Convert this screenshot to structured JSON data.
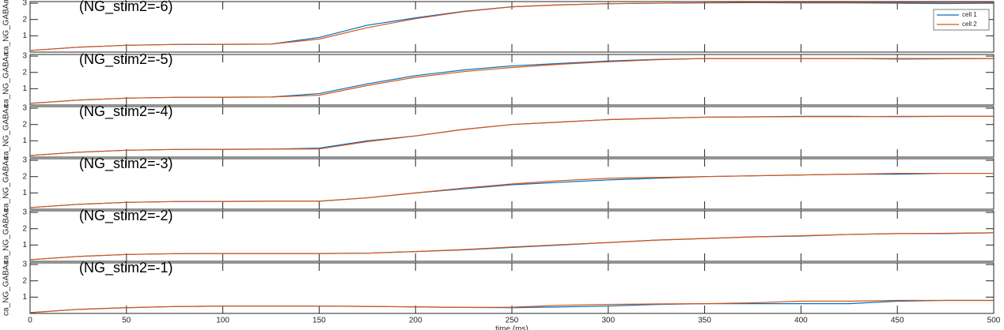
{
  "chart_data": [
    {
      "type": "line",
      "title": "(NG_stim2=-6)",
      "ylabel": "ca_NG_GABAa",
      "legend": "upper right",
      "x": [
        0,
        25,
        50,
        75,
        100,
        125,
        150,
        175,
        200,
        225,
        250,
        275,
        300,
        325,
        350,
        375,
        400,
        425,
        450,
        475,
        500
      ],
      "series": [
        {
          "name": "cell 1",
          "color": "#0072bd",
          "values": [
            0.1,
            0.3,
            0.42,
            0.47,
            0.48,
            0.49,
            0.9,
            1.65,
            2.1,
            2.5,
            2.78,
            2.9,
            2.97,
            3.0,
            3.02,
            3.03,
            3.02,
            3.02,
            3.0,
            2.98,
            3.0
          ]
        },
        {
          "name": "cell 2",
          "color": "#d95319",
          "values": [
            0.1,
            0.3,
            0.42,
            0.47,
            0.48,
            0.49,
            0.8,
            1.5,
            2.05,
            2.48,
            2.78,
            2.9,
            2.97,
            3.0,
            3.03,
            3.05,
            3.05,
            3.05,
            3.05,
            3.05,
            3.05
          ]
        }
      ],
      "xlim": [
        0,
        500
      ],
      "xticks": [
        0,
        50,
        100,
        150,
        200,
        250,
        300,
        350,
        400,
        450,
        500
      ],
      "ylim": [
        0,
        3.1
      ],
      "yticks": [
        1,
        2,
        3
      ]
    },
    {
      "type": "line",
      "title": "(NG_stim2=-5)",
      "ylabel": "ca_NG_GABAa",
      "x": [
        0,
        25,
        50,
        75,
        100,
        125,
        150,
        175,
        200,
        225,
        250,
        275,
        300,
        325,
        350,
        375,
        400,
        425,
        450,
        475,
        500
      ],
      "series": [
        {
          "name": "cell 1",
          "color": "#0072bd",
          "values": [
            0.1,
            0.3,
            0.42,
            0.47,
            0.48,
            0.49,
            0.7,
            1.3,
            1.8,
            2.15,
            2.4,
            2.55,
            2.7,
            2.8,
            2.85,
            2.85,
            2.85,
            2.85,
            2.82,
            2.83,
            2.85
          ]
        },
        {
          "name": "cell 2",
          "color": "#d95319",
          "values": [
            0.1,
            0.3,
            0.42,
            0.47,
            0.48,
            0.49,
            0.6,
            1.2,
            1.7,
            2.05,
            2.3,
            2.5,
            2.65,
            2.78,
            2.85,
            2.85,
            2.85,
            2.85,
            2.85,
            2.85,
            2.85
          ]
        }
      ],
      "xlim": [
        0,
        500
      ],
      "xticks": [
        0,
        50,
        100,
        150,
        200,
        250,
        300,
        350,
        400,
        450,
        500
      ],
      "ylim": [
        0,
        3.1
      ],
      "yticks": [
        1,
        2,
        3
      ]
    },
    {
      "type": "line",
      "title": "(NG_stim2=-4)",
      "ylabel": "ca_NG_GABAa",
      "x": [
        0,
        25,
        50,
        75,
        100,
        125,
        150,
        175,
        200,
        225,
        250,
        275,
        300,
        325,
        350,
        375,
        400,
        425,
        450,
        475,
        500
      ],
      "series": [
        {
          "name": "cell 1",
          "color": "#0072bd",
          "values": [
            0.1,
            0.3,
            0.42,
            0.47,
            0.48,
            0.49,
            0.55,
            1.0,
            1.3,
            1.7,
            2.0,
            2.15,
            2.3,
            2.38,
            2.45,
            2.47,
            2.5,
            2.5,
            2.48,
            2.5,
            2.5
          ]
        },
        {
          "name": "cell 2",
          "color": "#d95319",
          "values": [
            0.1,
            0.3,
            0.42,
            0.47,
            0.48,
            0.49,
            0.5,
            0.95,
            1.3,
            1.7,
            2.0,
            2.15,
            2.3,
            2.38,
            2.45,
            2.47,
            2.48,
            2.48,
            2.5,
            2.5,
            2.5
          ]
        }
      ],
      "xlim": [
        0,
        500
      ],
      "xticks": [
        0,
        50,
        100,
        150,
        200,
        250,
        300,
        350,
        400,
        450,
        500
      ],
      "ylim": [
        0,
        3.1
      ],
      "yticks": [
        1,
        2,
        3
      ]
    },
    {
      "type": "line",
      "title": "(NG_stim2=-3)",
      "ylabel": "ca_NG_GABAa",
      "x": [
        0,
        25,
        50,
        75,
        100,
        125,
        150,
        175,
        200,
        225,
        250,
        275,
        300,
        325,
        350,
        375,
        400,
        425,
        450,
        475,
        500
      ],
      "series": [
        {
          "name": "cell 1",
          "color": "#0072bd",
          "values": [
            0.1,
            0.3,
            0.42,
            0.47,
            0.48,
            0.49,
            0.49,
            0.7,
            1.0,
            1.25,
            1.5,
            1.65,
            1.8,
            1.9,
            2.0,
            2.05,
            2.1,
            2.15,
            2.15,
            2.2,
            2.2
          ]
        },
        {
          "name": "cell 2",
          "color": "#d95319",
          "values": [
            0.1,
            0.3,
            0.42,
            0.47,
            0.48,
            0.49,
            0.49,
            0.7,
            1.0,
            1.3,
            1.55,
            1.75,
            1.9,
            1.95,
            2.0,
            2.05,
            2.1,
            2.15,
            2.2,
            2.2,
            2.2
          ]
        }
      ],
      "xlim": [
        0,
        500
      ],
      "xticks": [
        0,
        50,
        100,
        150,
        200,
        250,
        300,
        350,
        400,
        450,
        500
      ],
      "ylim": [
        0,
        3.1
      ],
      "yticks": [
        1,
        2,
        3
      ]
    },
    {
      "type": "line",
      "title": "(NG_stim2=-2)",
      "ylabel": "ca_NG_GABAa",
      "x": [
        0,
        25,
        50,
        75,
        100,
        125,
        150,
        175,
        200,
        225,
        250,
        275,
        300,
        325,
        350,
        375,
        400,
        425,
        450,
        475,
        500
      ],
      "series": [
        {
          "name": "cell 1",
          "color": "#0072bd",
          "values": [
            0.1,
            0.3,
            0.42,
            0.47,
            0.48,
            0.48,
            0.48,
            0.5,
            0.6,
            0.7,
            0.85,
            1.0,
            1.15,
            1.3,
            1.4,
            1.5,
            1.55,
            1.65,
            1.7,
            1.7,
            1.75
          ]
        },
        {
          "name": "cell 2",
          "color": "#d95319",
          "values": [
            0.1,
            0.3,
            0.42,
            0.47,
            0.48,
            0.48,
            0.48,
            0.5,
            0.6,
            0.72,
            0.88,
            1.02,
            1.15,
            1.3,
            1.4,
            1.5,
            1.57,
            1.65,
            1.7,
            1.72,
            1.75
          ]
        }
      ],
      "xlim": [
        0,
        500
      ],
      "xticks": [
        0,
        50,
        100,
        150,
        200,
        250,
        300,
        350,
        400,
        450,
        500
      ],
      "ylim": [
        0,
        3.1
      ],
      "yticks": [
        1,
        2,
        3
      ]
    },
    {
      "type": "line",
      "title": "(NG_stim2=-1)",
      "ylabel": "ca_NG_GABAa",
      "xlabel": "time (ms)",
      "x": [
        0,
        25,
        50,
        75,
        100,
        125,
        150,
        175,
        200,
        225,
        250,
        275,
        300,
        325,
        350,
        375,
        400,
        425,
        450,
        475,
        500
      ],
      "series": [
        {
          "name": "cell 1",
          "color": "#0072bd",
          "values": [
            0.05,
            0.25,
            0.35,
            0.42,
            0.45,
            0.45,
            0.45,
            0.43,
            0.4,
            0.37,
            0.35,
            0.4,
            0.45,
            0.55,
            0.6,
            0.6,
            0.6,
            0.6,
            0.75,
            0.8,
            0.8
          ]
        },
        {
          "name": "cell 2",
          "color": "#d95319",
          "values": [
            0.05,
            0.25,
            0.35,
            0.42,
            0.45,
            0.45,
            0.45,
            0.43,
            0.4,
            0.37,
            0.38,
            0.5,
            0.55,
            0.58,
            0.6,
            0.65,
            0.75,
            0.75,
            0.8,
            0.8,
            0.8
          ]
        }
      ],
      "xlim": [
        0,
        500
      ],
      "xticks": [
        0,
        50,
        100,
        150,
        200,
        250,
        300,
        350,
        400,
        450,
        500
      ],
      "ylim": [
        0,
        3.1
      ],
      "yticks": [
        1,
        2,
        3
      ]
    }
  ]
}
